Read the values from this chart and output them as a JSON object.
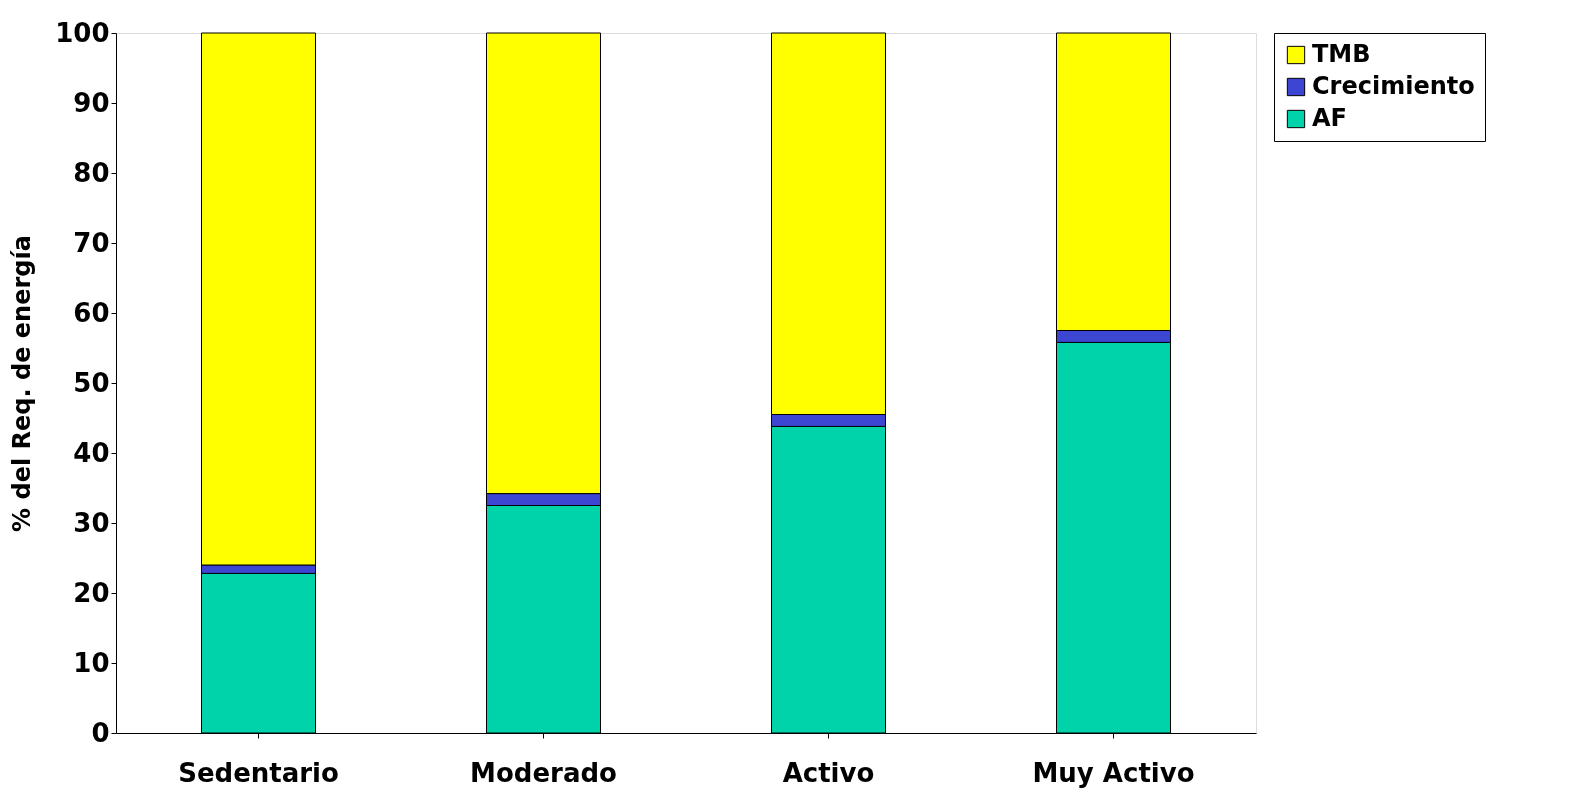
{
  "chart_data": {
    "type": "bar",
    "ylabel": "% del Req. de energía",
    "categories": [
      "Sedentario",
      "Moderado",
      "Activo",
      "Muy Activo"
    ],
    "stacked": true,
    "series": [
      {
        "name": "AF",
        "color": "#00d2aa",
        "values": [
          22.8,
          32.5,
          43.8,
          55.8
        ]
      },
      {
        "name": "Crecimiento",
        "color": "#3c46d2",
        "values": [
          1.2,
          1.7,
          1.7,
          1.7
        ]
      },
      {
        "name": "TMB",
        "color": "#ffff00",
        "values": [
          76.0,
          65.8,
          54.5,
          42.5
        ]
      }
    ],
    "ylim": [
      0,
      100
    ],
    "yticks": [
      0,
      10,
      20,
      30,
      40,
      50,
      60,
      70,
      80,
      90,
      100
    ],
    "grid": false,
    "legend": "right"
  }
}
